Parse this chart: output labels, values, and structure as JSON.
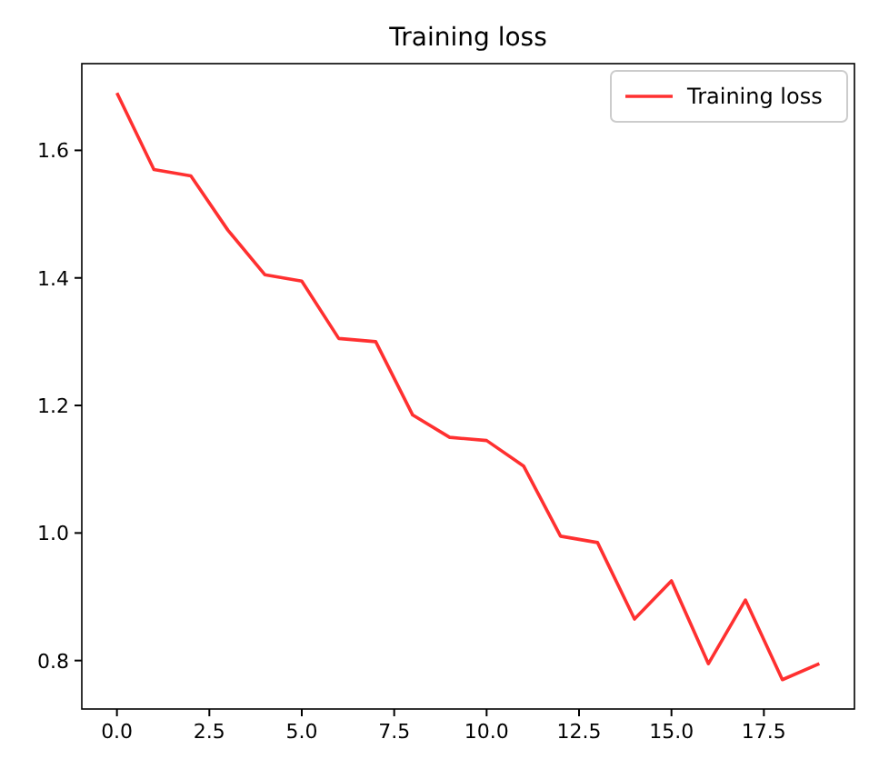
{
  "chart_data": {
    "type": "line",
    "title": "Training loss",
    "x": [
      0,
      1,
      2,
      3,
      4,
      5,
      6,
      7,
      8,
      9,
      10,
      11,
      12,
      13,
      14,
      15,
      16,
      17,
      18,
      19
    ],
    "series": [
      {
        "name": "Training loss",
        "color": "#ff3030",
        "values": [
          1.69,
          1.57,
          1.56,
          1.475,
          1.405,
          1.395,
          1.305,
          1.3,
          1.185,
          1.15,
          1.145,
          1.105,
          0.995,
          0.985,
          0.865,
          0.925,
          0.795,
          0.895,
          0.77,
          0.795
        ]
      }
    ],
    "xlim": [
      -0.95,
      19.95
    ],
    "ylim": [
      0.724,
      1.736
    ],
    "xticks": [
      {
        "value": 0,
        "label": "0.0"
      },
      {
        "value": 2.5,
        "label": "2.5"
      },
      {
        "value": 5,
        "label": "5.0"
      },
      {
        "value": 7.5,
        "label": "7.5"
      },
      {
        "value": 10,
        "label": "10.0"
      },
      {
        "value": 12.5,
        "label": "12.5"
      },
      {
        "value": 15,
        "label": "15.0"
      },
      {
        "value": 17.5,
        "label": "17.5"
      }
    ],
    "yticks": [
      {
        "value": 0.8,
        "label": "0.8"
      },
      {
        "value": 1.0,
        "label": "1.0"
      },
      {
        "value": 1.2,
        "label": "1.2"
      },
      {
        "value": 1.4,
        "label": "1.4"
      },
      {
        "value": 1.6,
        "label": "1.6"
      }
    ],
    "legend": "top right",
    "grid": false,
    "marker": "none",
    "line_style": "solid"
  }
}
